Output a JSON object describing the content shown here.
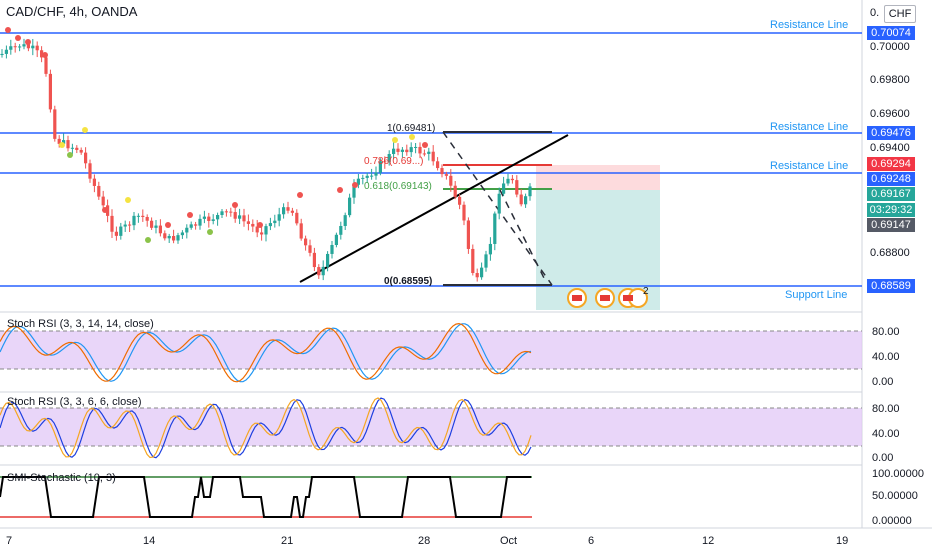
{
  "header": {
    "symbol": "CAD/CHF, 4h, OANDA",
    "currency": "CHF"
  },
  "price_axis": {
    "top_partial": "0.",
    "ticks": [
      "0.70000",
      "0.69800",
      "0.69600",
      "0.69400",
      "0.68800"
    ],
    "tags": [
      {
        "text": "0.70074",
        "color": "#2962ff"
      },
      {
        "text": "0.69476",
        "color": "#2962ff"
      },
      {
        "text": "0.69294",
        "color": "#f23645"
      },
      {
        "text": "0.69248",
        "color": "#2962ff"
      },
      {
        "text": "0.69167",
        "color": "#26a69a"
      },
      {
        "text": "03:29:32",
        "color": "#26a69a"
      },
      {
        "text": "0.69147",
        "color": "#555a66"
      },
      {
        "text": "0.68589",
        "color": "#2962ff"
      }
    ]
  },
  "drawings": {
    "resistance_label": "Resistance Line",
    "support_label": "Support Line",
    "fib_labels": [
      "1(0.69481)",
      "0.786(0.69...)",
      "0.618(0.69143)",
      "0(0.68595)"
    ]
  },
  "indicators": [
    {
      "title": "Stoch RSI (3, 3, 14, 14, close)",
      "ticks": [
        "80.00",
        "40.00",
        "0.00"
      ]
    },
    {
      "title": "Stoch RSI (3, 3, 6, 6, close)",
      "ticks": [
        "80.00",
        "40.00",
        "0.00"
      ]
    },
    {
      "title": "SMI-Stochastic (10, 3)",
      "ticks": [
        "100.00000",
        "50.00000",
        "0.00000"
      ]
    }
  ],
  "time_axis": {
    "labels": [
      "7",
      "14",
      "21",
      "28",
      "Oct",
      "6",
      "12",
      "19"
    ]
  },
  "event_badge_count": "2",
  "colors": {
    "up": "#26a69a",
    "down": "#ef5350",
    "line": "#2962ff",
    "band": "#e1c8f7"
  }
}
